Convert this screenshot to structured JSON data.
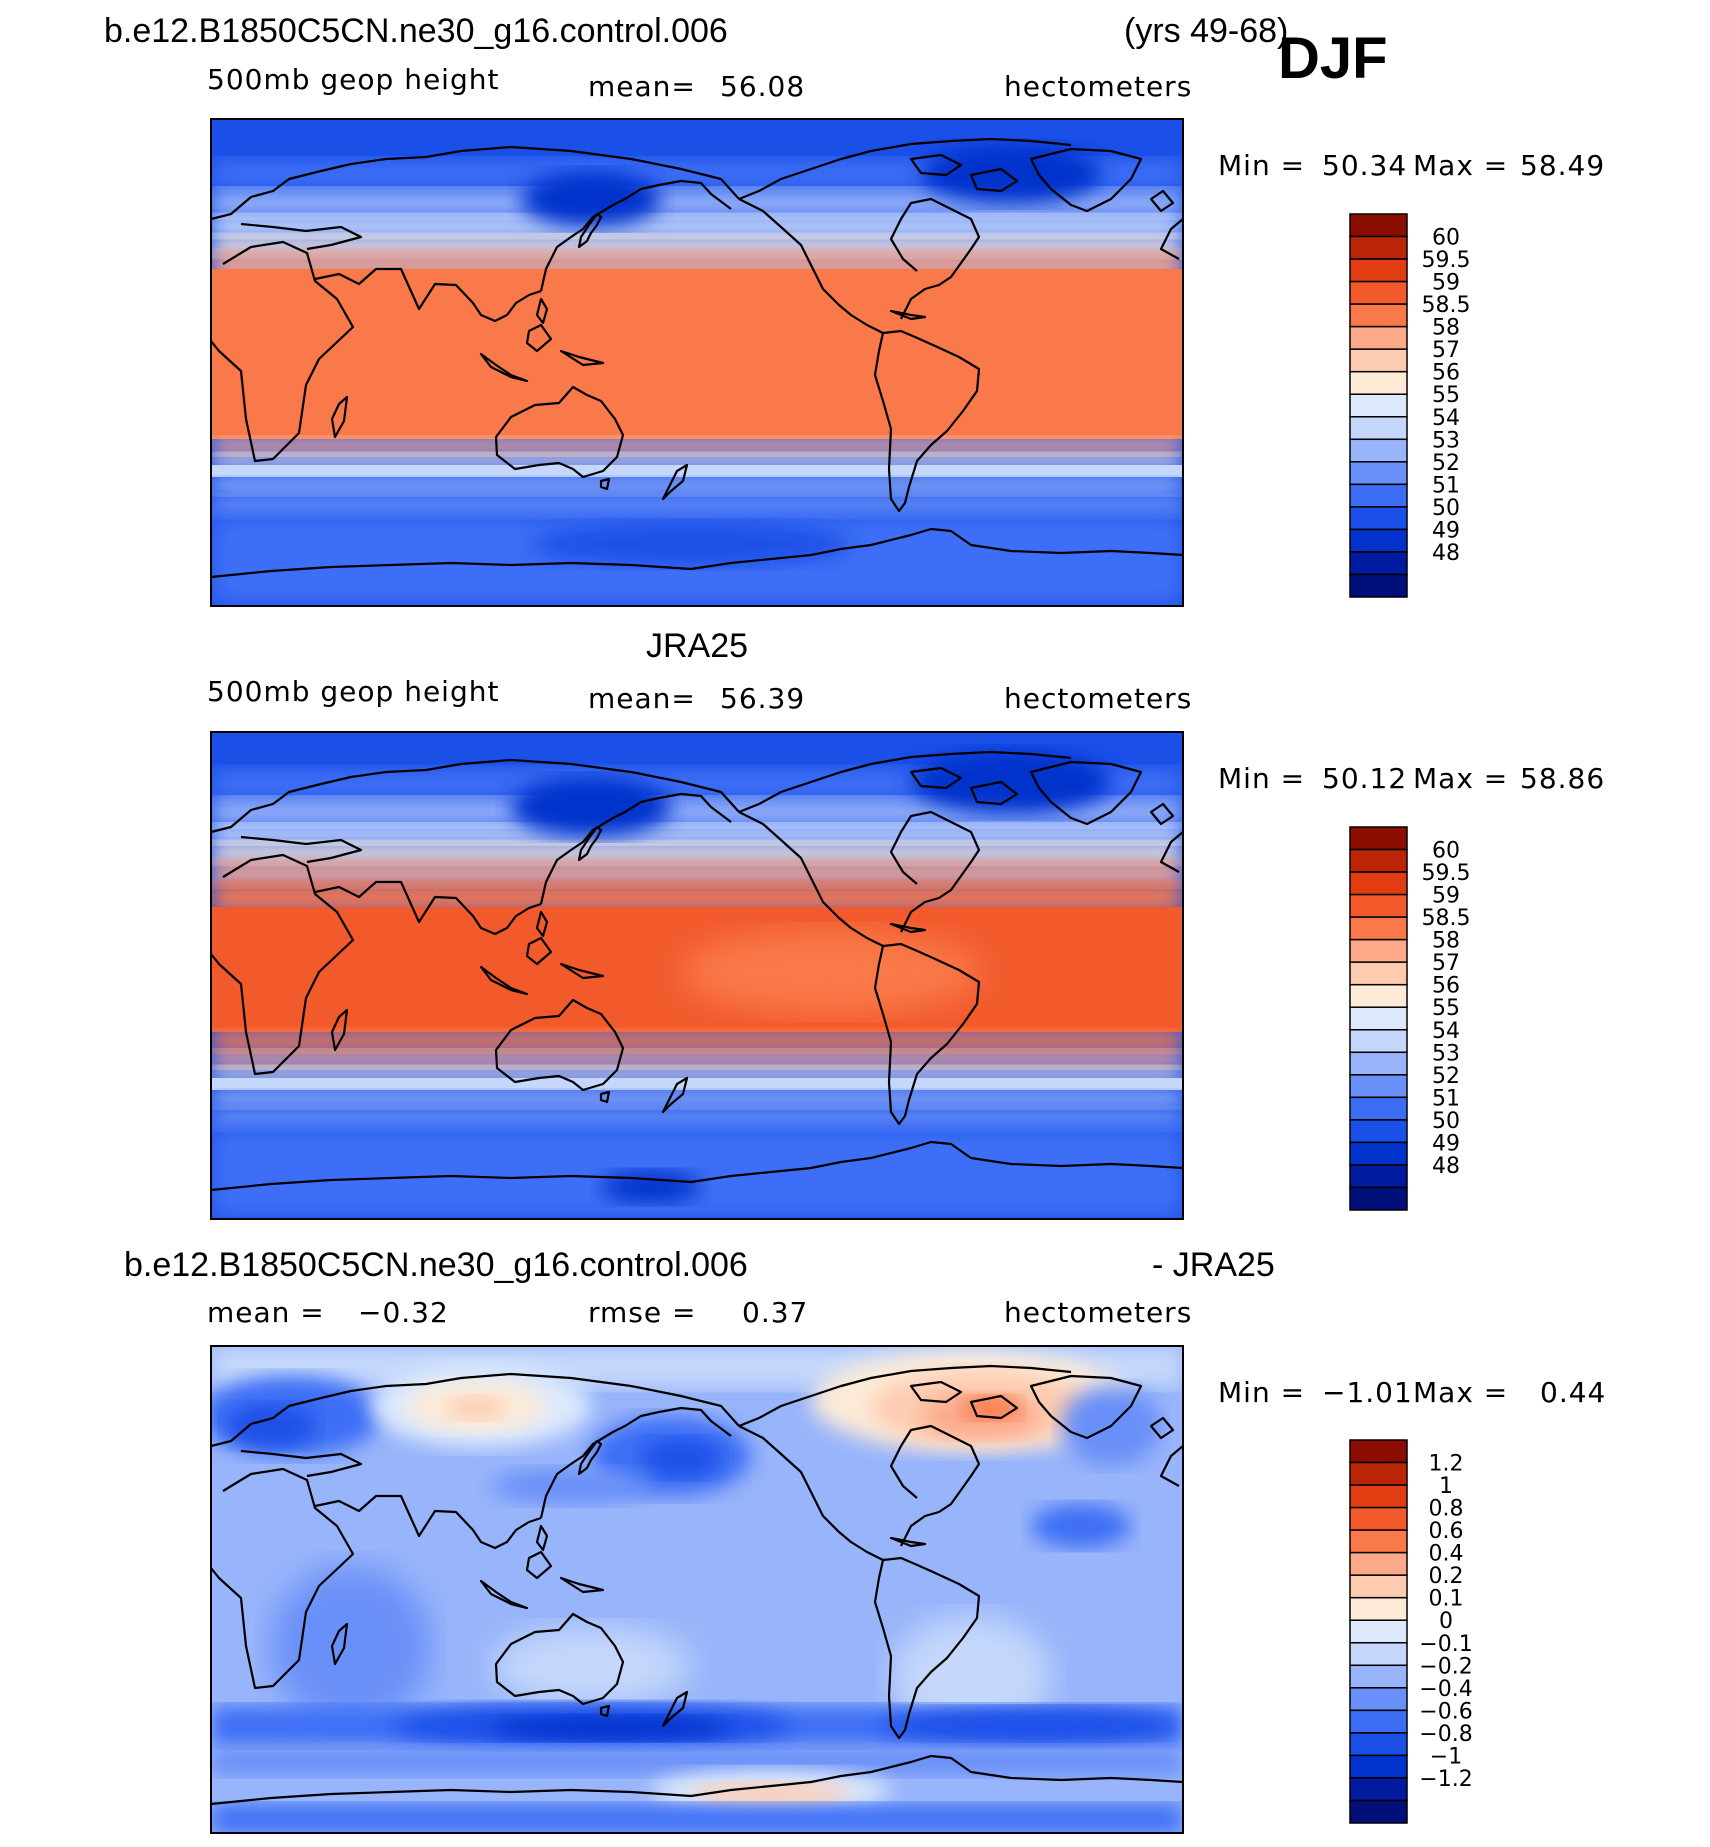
{
  "header": {
    "case_name": "b.e12.B1850C5CN.ne30_g16.control.006",
    "years": "(yrs 49-68)",
    "season": "DJF"
  },
  "panels": [
    {
      "id": "model",
      "title": "b.e12.B1850C5CN.ne30_g16.control.006",
      "variable": "500mb geop height",
      "stat_label": "mean=",
      "stat_value": "56.08",
      "units": "hectometers",
      "min_label": "Min =",
      "min_value": "50.34",
      "max_label": "Max =",
      "max_value": "58.49",
      "colorbar_labels": [
        "60",
        "59.5",
        "59",
        "58.5",
        "58",
        "57",
        "56",
        "55",
        "54",
        "53",
        "52",
        "51",
        "50",
        "49",
        "48"
      ]
    },
    {
      "id": "obs",
      "title": "JRA25",
      "variable": "500mb geop height",
      "stat_label": "mean=",
      "stat_value": "56.39",
      "units": "hectometers",
      "min_label": "Min =",
      "min_value": "50.12",
      "max_label": "Max =",
      "max_value": "58.86",
      "colorbar_labels": [
        "60",
        "59.5",
        "59",
        "58.5",
        "58",
        "57",
        "56",
        "55",
        "54",
        "53",
        "52",
        "51",
        "50",
        "49",
        "48"
      ]
    },
    {
      "id": "diff",
      "title": "b.e12.B1850C5CN.ne30_g16.control.006",
      "title_suffix": "- JRA25",
      "stat_label": "mean =",
      "stat_value": "−0.32",
      "rmse_label": "rmse =",
      "rmse_value": "0.37",
      "units": "hectometers",
      "min_label": "Min =",
      "min_value": "−1.01",
      "max_label": "Max =",
      "max_value": "0.44",
      "colorbar_labels": [
        "1.2",
        "1",
        "0.8",
        "0.6",
        "0.4",
        "0.2",
        "0.1",
        "0",
        "−0.1",
        "−0.2",
        "−0.4",
        "−0.6",
        "−0.8",
        "−1",
        "−1.2"
      ]
    }
  ],
  "colors": {
    "abs_scale": [
      "#000f7a",
      "#001aa0",
      "#0033cc",
      "#1a4fe8",
      "#3c6ef5",
      "#6990f8",
      "#98b4fa",
      "#c5d8fb",
      "#dce9fd",
      "#fdebd8",
      "#fdccb0",
      "#fca98a",
      "#f9794a",
      "#f25a2c",
      "#e23d12",
      "#bb2405",
      "#8a0d00"
    ],
    "diff_scale": [
      "#000f7a",
      "#001aa0",
      "#0033cc",
      "#1a4fe8",
      "#3c6ef5",
      "#6990f8",
      "#98b4fa",
      "#c5d8fb",
      "#dce9fd",
      "#fdebd8",
      "#fdccb0",
      "#fca98a",
      "#f9794a",
      "#f25a2c",
      "#e23d12",
      "#bb2405",
      "#8a0d00"
    ],
    "coastline": "#000000"
  }
}
